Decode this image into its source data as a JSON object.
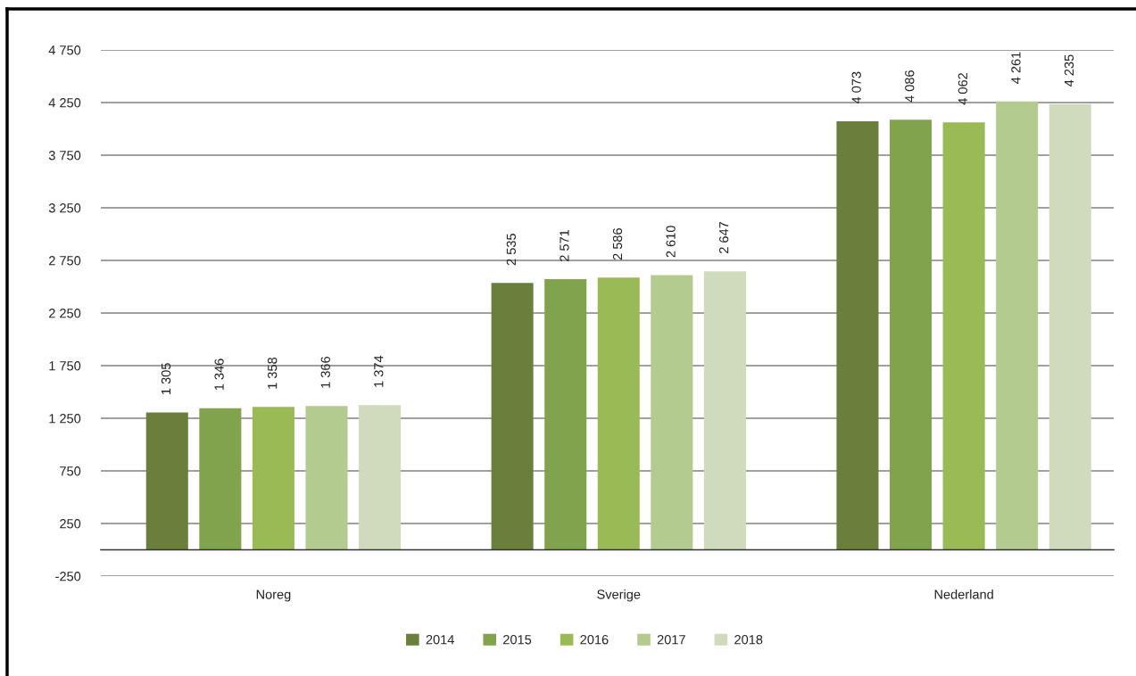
{
  "chart_data": {
    "type": "bar",
    "categories": [
      "Noreg",
      "Sverige",
      "Nederland"
    ],
    "series": [
      {
        "name": "2014",
        "color": "#6a7f3b",
        "values": [
          1305,
          2535,
          4073
        ],
        "value_labels": [
          "1 305",
          "2 535",
          "4 073"
        ]
      },
      {
        "name": "2015",
        "color": "#82a34e",
        "values": [
          1346,
          2571,
          4086
        ],
        "value_labels": [
          "1 346",
          "2 571",
          "4 086"
        ]
      },
      {
        "name": "2016",
        "color": "#9aba55",
        "values": [
          1358,
          2586,
          4062
        ],
        "value_labels": [
          "1 358",
          "2 586",
          "4 062"
        ]
      },
      {
        "name": "2017",
        "color": "#b3cb8f",
        "values": [
          1366,
          2610,
          4261
        ],
        "value_labels": [
          "1 366",
          "2 610",
          "4 261"
        ]
      },
      {
        "name": "2018",
        "color": "#cfdbbc",
        "values": [
          1374,
          2647,
          4235
        ],
        "value_labels": [
          "1 374",
          "2 647",
          "4 235"
        ]
      }
    ],
    "ylim": [
      -250,
      4750
    ],
    "yticks": [
      -250,
      250,
      750,
      {
        "value": 1250,
        "label": "1 250"
      },
      {
        "value": 1750,
        "label": "1 750"
      },
      {
        "value": 2250,
        "label": "2 250"
      },
      {
        "value": 2750,
        "label": "2 750"
      },
      {
        "value": 3250,
        "label": "3 250"
      },
      {
        "value": 3750,
        "label": "3 750"
      },
      {
        "value": 4250,
        "label": "4 250"
      },
      {
        "value": 4750,
        "label": "4 750"
      }
    ],
    "grid": "y",
    "legend": "bottom"
  }
}
